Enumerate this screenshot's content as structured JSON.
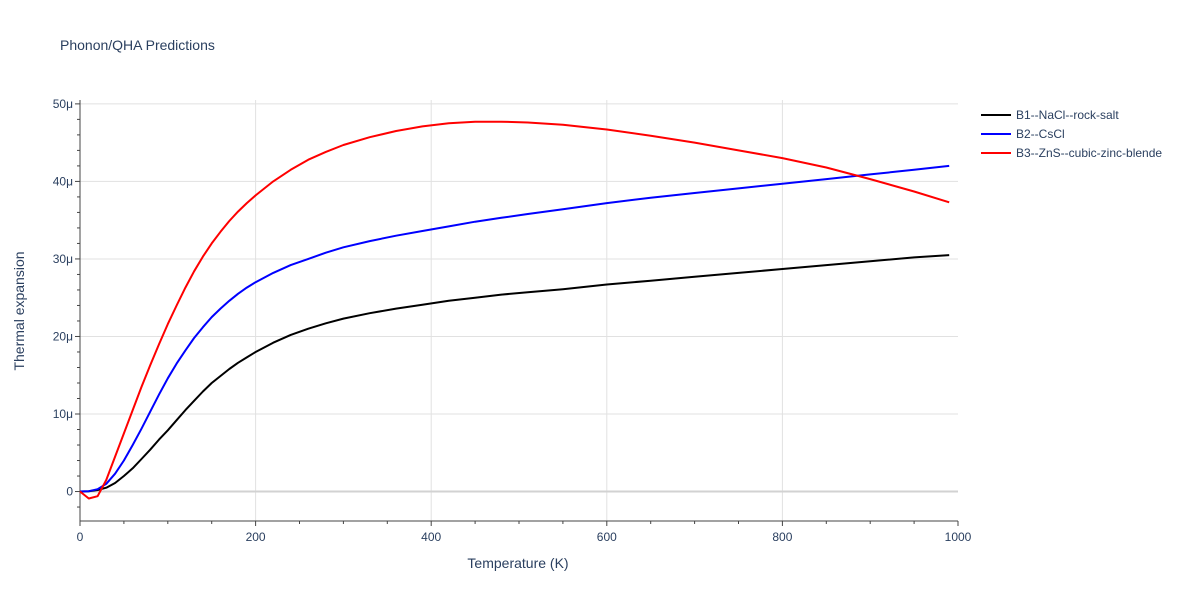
{
  "chart_data": {
    "type": "line",
    "title": "Phonon/QHA Predictions",
    "xlabel": "Temperature (K)",
    "ylabel": "Thermal expansion",
    "xlim": [
      0,
      1000
    ],
    "ylim": [
      -3.8,
      50.5
    ],
    "x_ticks": [
      0,
      200,
      400,
      600,
      800,
      1000
    ],
    "x_tick_labels": [
      "0",
      "200",
      "400",
      "600",
      "800",
      "1000"
    ],
    "y_ticks": [
      0,
      10,
      20,
      30,
      40,
      50
    ],
    "y_tick_labels": [
      "0",
      "10μ",
      "20μ",
      "30μ",
      "40μ",
      "50μ"
    ],
    "y_unit_note": "values in units of 1e-6 (μ)",
    "grid": true,
    "legend_position": "top-right",
    "series": [
      {
        "name": "B1--NaCl--rock-salt",
        "color": "#000000",
        "x": [
          0,
          10,
          20,
          30,
          40,
          50,
          60,
          70,
          80,
          90,
          100,
          110,
          120,
          130,
          140,
          150,
          160,
          170,
          180,
          190,
          200,
          220,
          240,
          260,
          280,
          300,
          330,
          360,
          390,
          420,
          450,
          480,
          510,
          550,
          600,
          650,
          700,
          750,
          800,
          850,
          900,
          950,
          990
        ],
        "y": [
          0,
          0.05,
          0.2,
          0.5,
          1.1,
          2.0,
          3.0,
          4.2,
          5.4,
          6.7,
          7.9,
          9.2,
          10.5,
          11.7,
          12.9,
          14.0,
          14.9,
          15.8,
          16.6,
          17.3,
          18.0,
          19.2,
          20.2,
          21.0,
          21.7,
          22.3,
          23.0,
          23.6,
          24.1,
          24.6,
          25.0,
          25.4,
          25.7,
          26.1,
          26.7,
          27.2,
          27.7,
          28.2,
          28.7,
          29.2,
          29.7,
          30.2,
          30.5
        ]
      },
      {
        "name": "B2--CsCl",
        "color": "#0000ff",
        "x": [
          0,
          10,
          20,
          30,
          40,
          50,
          60,
          70,
          80,
          90,
          100,
          110,
          120,
          130,
          140,
          150,
          160,
          170,
          180,
          190,
          200,
          220,
          240,
          260,
          280,
          300,
          330,
          360,
          390,
          420,
          450,
          480,
          510,
          550,
          600,
          650,
          700,
          750,
          800,
          850,
          900,
          950,
          990
        ],
        "y": [
          0,
          0.05,
          0.3,
          1.0,
          2.3,
          4.0,
          6.0,
          8.1,
          10.3,
          12.5,
          14.6,
          16.5,
          18.2,
          19.8,
          21.2,
          22.5,
          23.6,
          24.6,
          25.5,
          26.3,
          27.0,
          28.2,
          29.2,
          30.0,
          30.8,
          31.5,
          32.3,
          33.0,
          33.6,
          34.2,
          34.8,
          35.3,
          35.8,
          36.4,
          37.2,
          37.9,
          38.5,
          39.1,
          39.7,
          40.3,
          40.9,
          41.5,
          42.0
        ]
      },
      {
        "name": "B3--ZnS--cubic-zinc-blende",
        "color": "#ff0000",
        "x": [
          0,
          10,
          20,
          30,
          40,
          50,
          60,
          70,
          80,
          90,
          100,
          110,
          120,
          130,
          140,
          150,
          160,
          170,
          180,
          190,
          200,
          220,
          240,
          260,
          280,
          300,
          330,
          360,
          390,
          420,
          450,
          480,
          510,
          550,
          600,
          650,
          700,
          750,
          800,
          850,
          900,
          950,
          990
        ],
        "y": [
          0,
          -0.9,
          -0.6,
          1.5,
          4.5,
          7.5,
          10.5,
          13.5,
          16.3,
          19.0,
          21.6,
          24.0,
          26.3,
          28.4,
          30.3,
          32.0,
          33.5,
          34.9,
          36.1,
          37.2,
          38.2,
          40.0,
          41.5,
          42.8,
          43.8,
          44.7,
          45.7,
          46.5,
          47.1,
          47.5,
          47.7,
          47.7,
          47.6,
          47.3,
          46.7,
          45.9,
          45.0,
          44.0,
          43.0,
          41.8,
          40.3,
          38.7,
          37.3
        ]
      }
    ]
  }
}
